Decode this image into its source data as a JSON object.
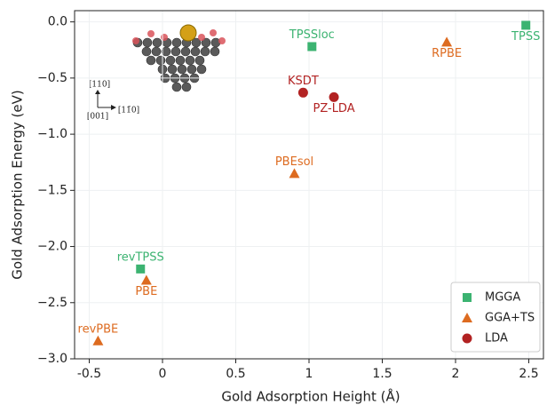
{
  "chart_data": {
    "type": "scatter",
    "x_label": "Gold Adsorption Height (Å)",
    "y_label": "Gold Adsorption Energy (eV)",
    "xlim": [
      -0.6,
      2.6
    ],
    "xticks": [
      -0.5,
      0.0,
      0.5,
      1.0,
      1.5,
      2.0,
      2.5
    ],
    "ylim": [
      -3.0,
      0.1
    ],
    "yticks": [
      -3.0,
      -2.5,
      -2.0,
      -1.5,
      -1.0,
      -0.5,
      0.0
    ],
    "grid": true,
    "legend": "lower right",
    "inset_labels": [
      "[110]",
      "[001]",
      "[11̄0]"
    ],
    "series": [
      {
        "name": "MGGA",
        "color": "#3cb371",
        "marker": "square",
        "x": [
          2.48,
          1.02,
          -0.15
        ],
        "values": [
          -0.03,
          -0.22,
          -2.2
        ],
        "labels": [
          "TPSS",
          "TPSSloc",
          "revTPSS"
        ]
      },
      {
        "name": "GGA+TS",
        "color": "#dd6b20",
        "marker": "triangle",
        "x": [
          1.94,
          0.9,
          -0.11,
          -0.44
        ],
        "values": [
          -0.18,
          -1.35,
          -2.3,
          -2.84
        ],
        "labels": [
          "RPBE",
          "PBEsol",
          "PBE",
          "revPBE"
        ]
      },
      {
        "name": "LDA",
        "color": "#b22222",
        "marker": "circle",
        "x": [
          0.96,
          1.17
        ],
        "values": [
          -0.63,
          -0.67
        ],
        "labels": [
          "KSDT",
          "PZ-LDA"
        ]
      }
    ]
  }
}
